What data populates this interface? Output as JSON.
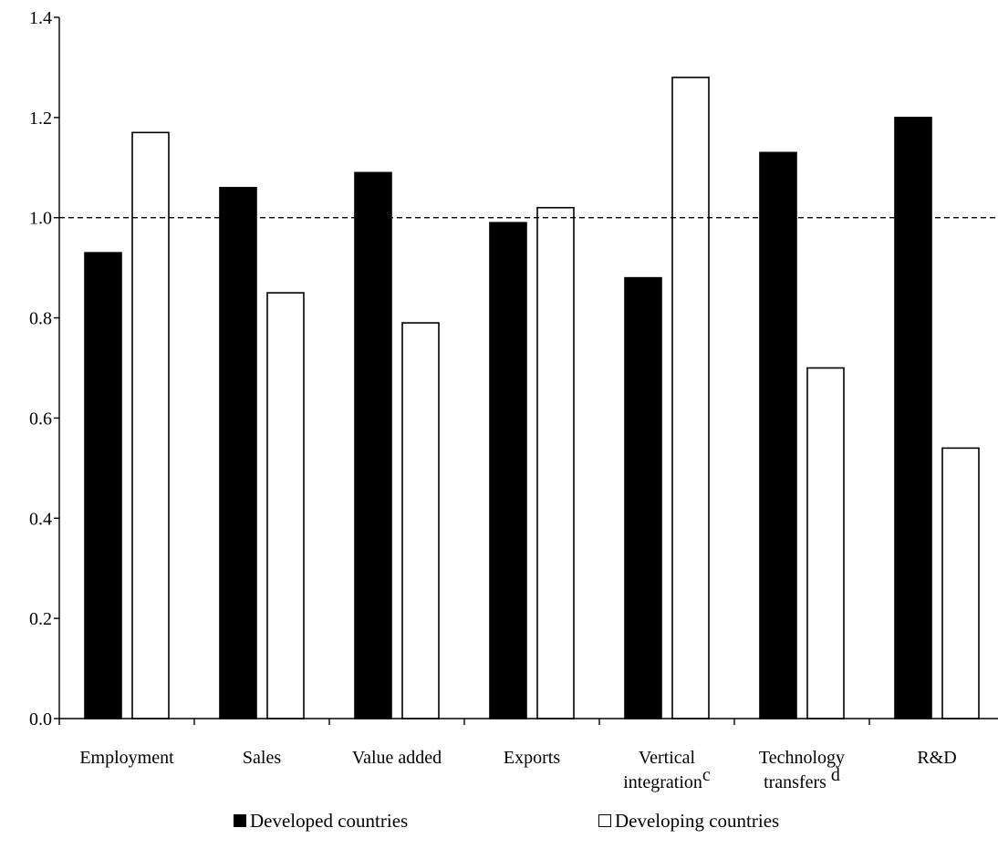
{
  "chart_data": {
    "type": "bar",
    "categories": [
      {
        "line1": "Employment",
        "line2": "",
        "sup": ""
      },
      {
        "line1": "Sales",
        "line2": "",
        "sup": ""
      },
      {
        "line1": "Value added",
        "line2": "",
        "sup": ""
      },
      {
        "line1": "Exports",
        "line2": "",
        "sup": ""
      },
      {
        "line1": "Vertical",
        "line2": "integration",
        "sup": "c"
      },
      {
        "line1": "Technology",
        "line2": "transfers ",
        "sup": "d"
      },
      {
        "line1": "R&D",
        "line2": "",
        "sup": ""
      }
    ],
    "series": [
      {
        "name": "Developed countries",
        "color": "#000000",
        "values": [
          0.93,
          1.06,
          1.09,
          0.99,
          0.88,
          1.13,
          1.2
        ]
      },
      {
        "name": "Developing countries",
        "color": "#ffffff",
        "values": [
          1.17,
          0.85,
          0.79,
          1.02,
          1.28,
          0.7,
          0.54
        ]
      }
    ],
    "ylim": [
      0.0,
      1.4
    ],
    "yticks": [
      "0.0",
      "0.2",
      "0.4",
      "0.6",
      "0.8",
      "1.0",
      "1.2",
      "1.4"
    ],
    "reference_line": 1.0,
    "grid": false,
    "legend_position": "bottom"
  }
}
